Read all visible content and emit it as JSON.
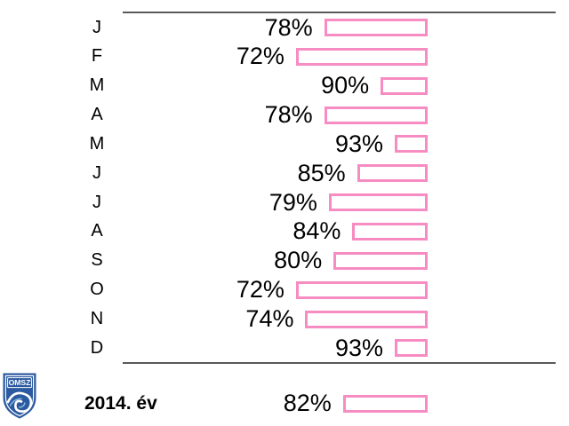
{
  "chart_data": {
    "type": "bar",
    "orientation": "horizontal",
    "title": "",
    "categories": [
      "J",
      "F",
      "M",
      "A",
      "M",
      "J",
      "J",
      "A",
      "S",
      "O",
      "N",
      "D"
    ],
    "values": [
      78,
      72,
      90,
      78,
      93,
      85,
      79,
      84,
      80,
      72,
      74,
      93
    ],
    "labels": [
      "78%",
      "72%",
      "90%",
      "78%",
      "93%",
      "85%",
      "79%",
      "84%",
      "80%",
      "72%",
      "74%",
      "93%"
    ],
    "summary": {
      "label": "2014. év",
      "value": 82,
      "label_text": "82%"
    },
    "value_axis_range": [
      0,
      100
    ],
    "bar_anchor": "right",
    "bar_length_represents": "100 minus value",
    "grid": "off",
    "legend": "none",
    "bar_fill": "#FFFFFF",
    "bar_border": "#F78CC2",
    "rule_color": "#595959",
    "text_color": "#000000"
  },
  "logo": {
    "text": "OMSZ",
    "shield_color": "#2C5AA0",
    "accent_color": "#8FC1E8"
  }
}
